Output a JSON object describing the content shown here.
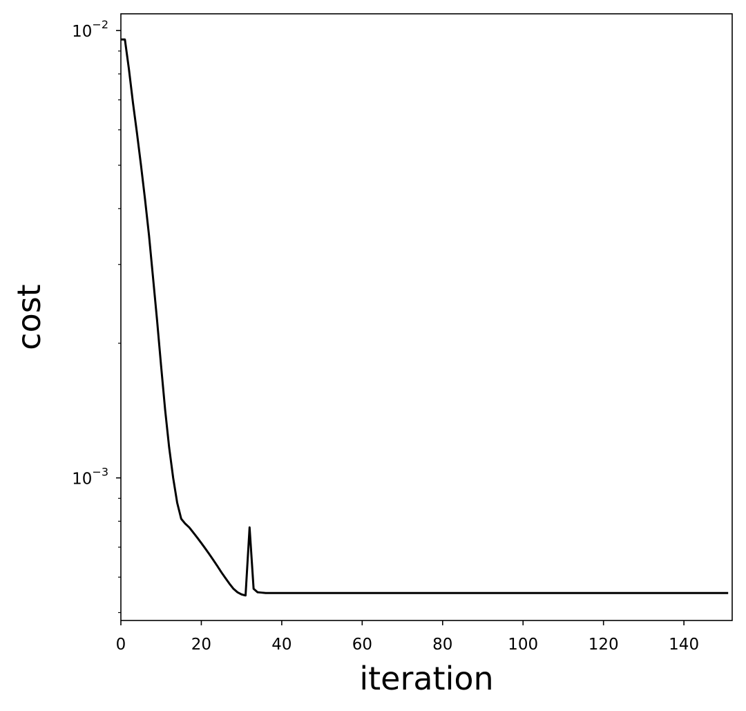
{
  "chart_data": {
    "type": "line",
    "title": "",
    "xlabel": "iteration",
    "ylabel": "cost",
    "xlim": [
      0,
      152
    ],
    "ylim": [
      0.00048,
      0.0109
    ],
    "yscale": "log",
    "grid": false,
    "line_color": "#000000",
    "x_ticks": [
      0,
      20,
      40,
      60,
      80,
      100,
      120,
      140
    ],
    "x_tick_labels": [
      "0",
      "20",
      "40",
      "60",
      "80",
      "100",
      "120",
      "140"
    ],
    "y_ticks": [
      {
        "value": 0.01,
        "base": "10",
        "exponent": "−2"
      },
      {
        "value": 0.001,
        "base": "10",
        "exponent": "−3"
      }
    ],
    "series": [
      {
        "x": [
          0,
          1,
          2,
          3,
          4,
          5,
          6,
          7,
          8,
          9,
          10,
          11,
          12,
          13,
          14,
          15,
          16,
          17,
          18,
          19,
          20,
          21,
          22,
          23,
          24,
          25,
          26,
          27,
          28,
          29,
          30,
          31,
          32,
          33,
          34,
          35,
          36,
          37,
          38,
          39,
          40,
          50,
          60,
          70,
          80,
          90,
          100,
          110,
          120,
          130,
          140,
          150,
          151
        ],
        "y": [
          0.00955,
          0.00955,
          0.0082,
          0.0069,
          0.0059,
          0.005,
          0.0042,
          0.00348,
          0.0028,
          0.00225,
          0.00178,
          0.00142,
          0.00117,
          0.001,
          0.00088,
          0.00081,
          0.00079,
          0.000775,
          0.000755,
          0.000735,
          0.000715,
          0.000695,
          0.000675,
          0.000655,
          0.000635,
          0.000615,
          0.000597,
          0.00058,
          0.000565,
          0.000555,
          0.000549,
          0.000546,
          0.000775,
          0.000565,
          0.000555,
          0.000554,
          0.000553,
          0.000553,
          0.000553,
          0.000553,
          0.000553,
          0.000553,
          0.000553,
          0.000553,
          0.000553,
          0.000553,
          0.000553,
          0.000553,
          0.000553,
          0.000553,
          0.000553,
          0.000553,
          0.000553
        ]
      }
    ]
  }
}
